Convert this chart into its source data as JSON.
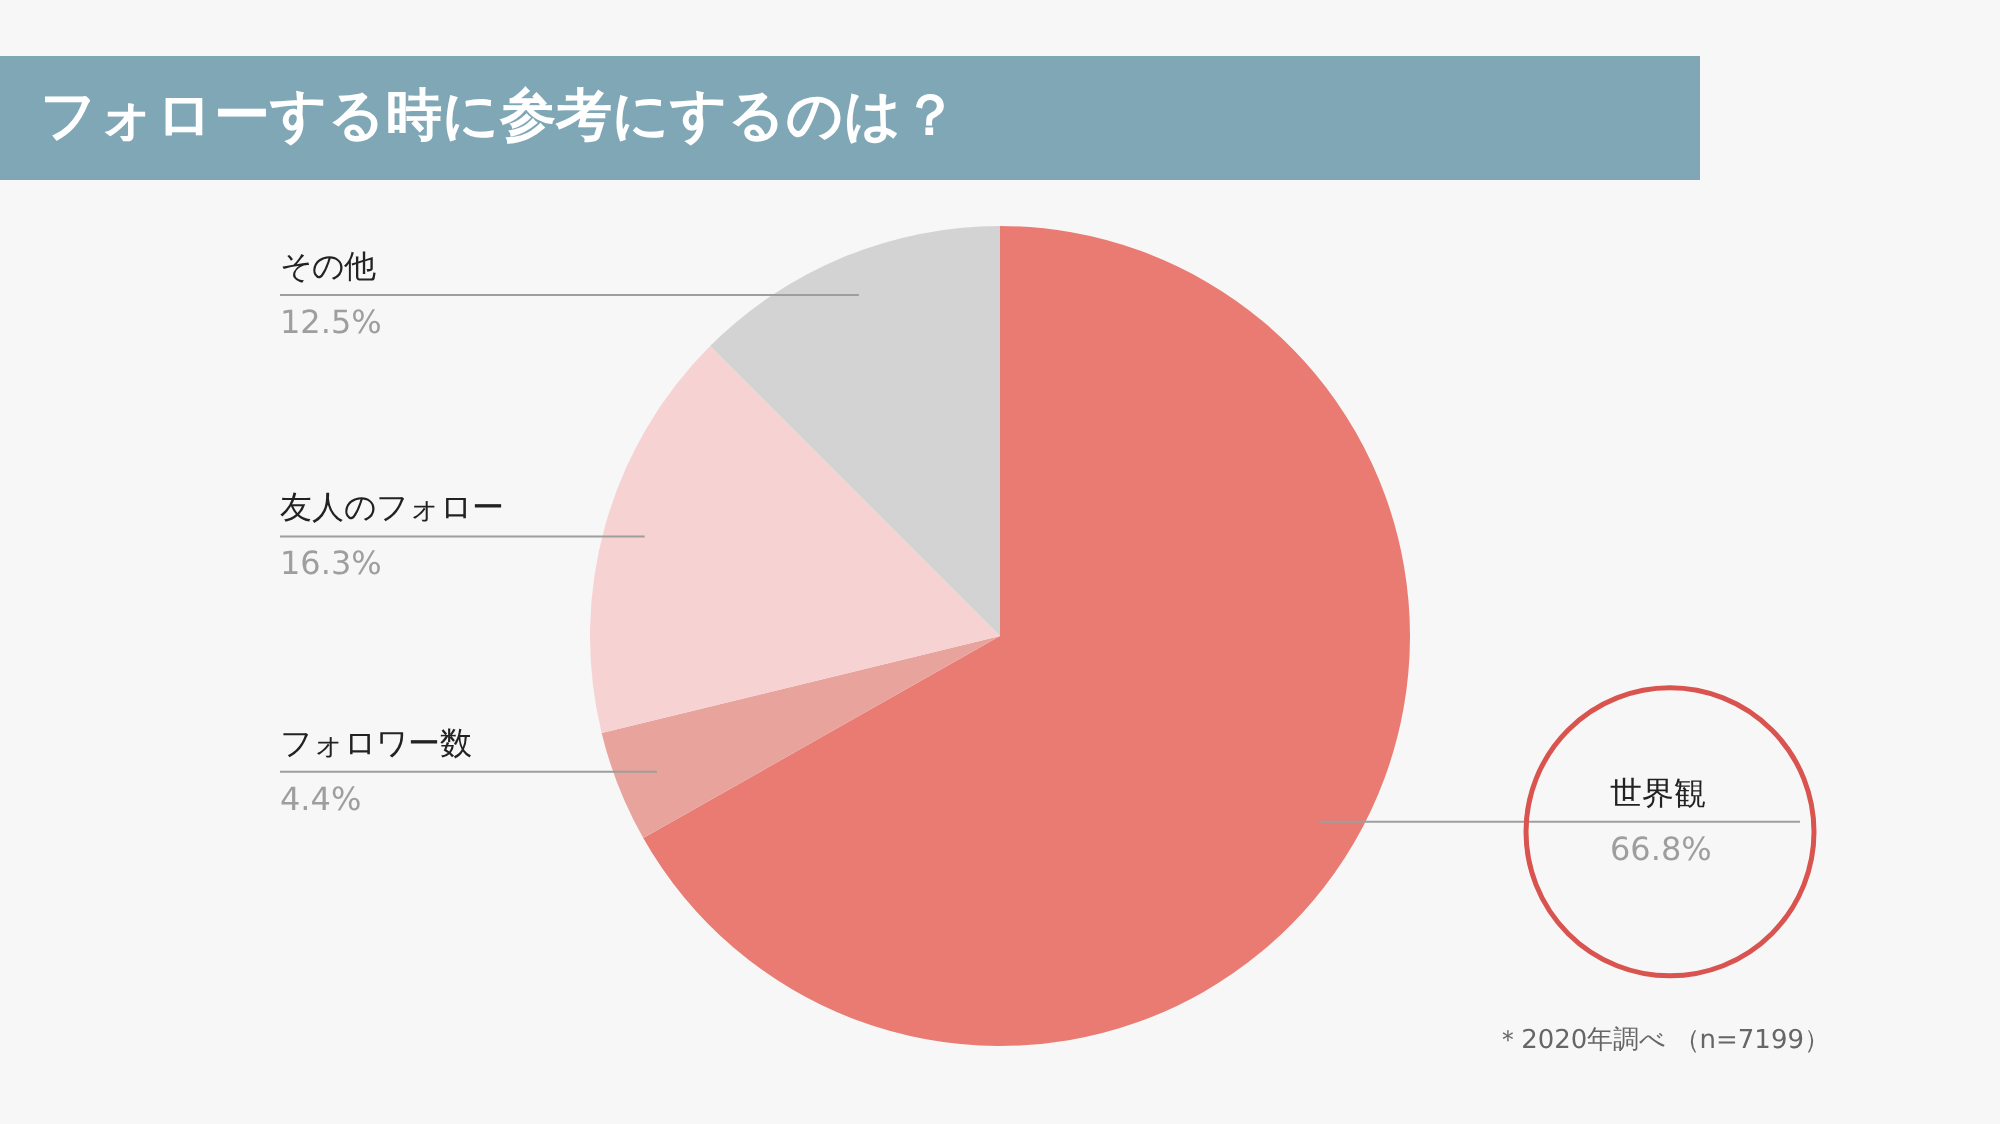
{
  "chart_data": {
    "type": "pie",
    "title": "フォローする時に参考にするのは？",
    "categories": [
      "世界観",
      "フォロワー数",
      "友人のフォロー",
      "その他"
    ],
    "values": [
      66.8,
      4.4,
      16.3,
      12.5
    ],
    "colors": [
      "#e97b72",
      "#e8a39d",
      "#f6d3d2",
      "#d3d3d3"
    ],
    "value_labels": [
      "66.8%",
      "4.4%",
      "16.3%",
      "12.5%"
    ],
    "annotations": [
      "＊2020年調べ （n=7199）"
    ]
  }
}
